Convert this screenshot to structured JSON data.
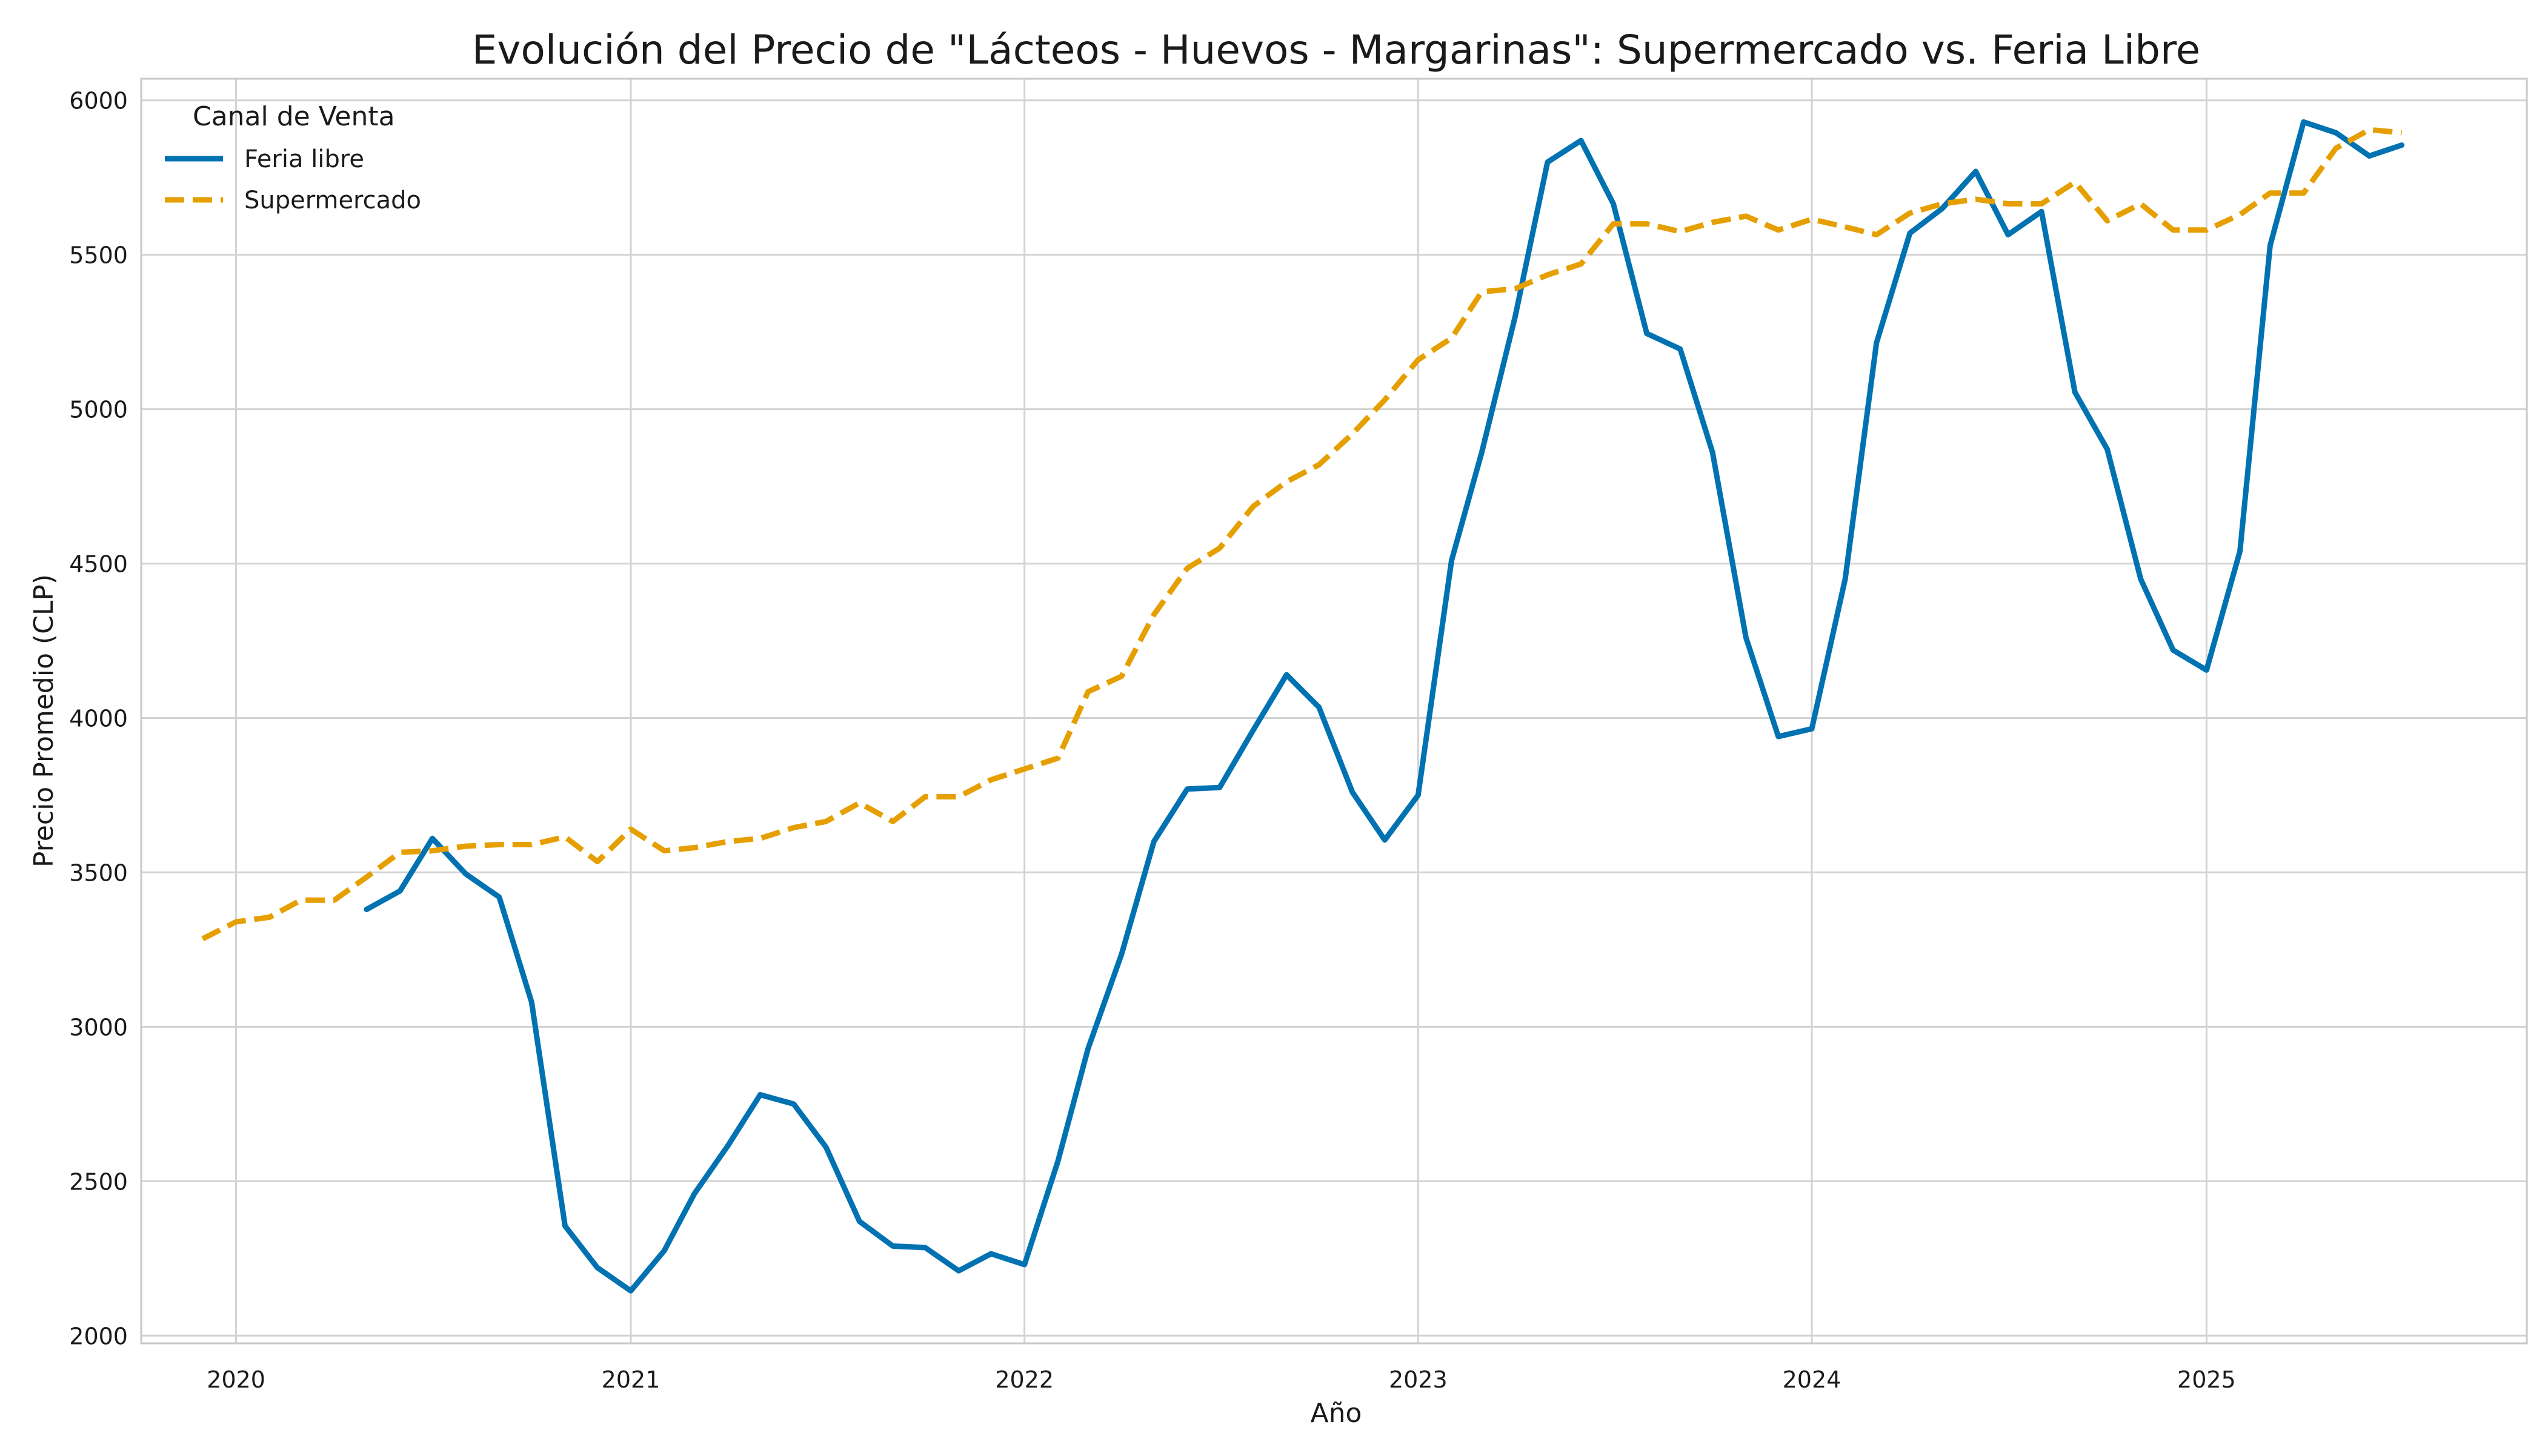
{
  "chart_data": {
    "type": "line",
    "title": "Evolución del Precio de \"Lácteos - Huevos - Margarinas\": Supermercado vs. Feria Libre",
    "xlabel": "Año",
    "ylabel": "Precio Promedio (CLP)",
    "xlim": [
      "2019-10-05",
      "2025-10-25"
    ],
    "ylim": [
      1975,
      6070
    ],
    "x_ticks": [
      "2020",
      "2021",
      "2022",
      "2023",
      "2024",
      "2025"
    ],
    "y_ticks": [
      2000,
      2500,
      3000,
      3500,
      4000,
      4500,
      5000,
      5500,
      6000
    ],
    "grid": true,
    "legend": {
      "title": "Canal de Venta",
      "position": "top-left"
    },
    "series": [
      {
        "name": "Feria libre",
        "color": "#0072b2",
        "style": "solid",
        "points": [
          [
            "2020-05-01",
            3380
          ],
          [
            "2020-06-01",
            3440
          ],
          [
            "2020-07-01",
            3610
          ],
          [
            "2020-08-01",
            3495
          ],
          [
            "2020-09-01",
            3420
          ],
          [
            "2020-10-01",
            3080
          ],
          [
            "2020-11-01",
            2355
          ],
          [
            "2020-12-01",
            2220
          ],
          [
            "2021-01-01",
            2145
          ],
          [
            "2021-02-01",
            2275
          ],
          [
            "2021-03-01",
            2460
          ],
          [
            "2021-04-01",
            2615
          ],
          [
            "2021-05-01",
            2780
          ],
          [
            "2021-06-01",
            2750
          ],
          [
            "2021-07-01",
            2610
          ],
          [
            "2021-08-01",
            2370
          ],
          [
            "2021-09-01",
            2290
          ],
          [
            "2021-10-01",
            2285
          ],
          [
            "2021-11-01",
            2210
          ],
          [
            "2021-12-01",
            2265
          ],
          [
            "2022-01-01",
            2230
          ],
          [
            "2022-02-01",
            2565
          ],
          [
            "2022-03-01",
            2930
          ],
          [
            "2022-04-01",
            3235
          ],
          [
            "2022-05-01",
            3600
          ],
          [
            "2022-06-01",
            3770
          ],
          [
            "2022-07-01",
            3775
          ],
          [
            "2022-08-01",
            3960
          ],
          [
            "2022-09-01",
            4140
          ],
          [
            "2022-10-01",
            4035
          ],
          [
            "2022-11-01",
            3760
          ],
          [
            "2022-12-01",
            3605
          ],
          [
            "2023-01-01",
            3750
          ],
          [
            "2023-02-01",
            4510
          ],
          [
            "2023-03-01",
            4860
          ],
          [
            "2023-04-01",
            5300
          ],
          [
            "2023-05-01",
            5800
          ],
          [
            "2023-06-01",
            5870
          ],
          [
            "2023-07-01",
            5665
          ],
          [
            "2023-08-01",
            5245
          ],
          [
            "2023-09-01",
            5195
          ],
          [
            "2023-10-01",
            4860
          ],
          [
            "2023-11-01",
            4260
          ],
          [
            "2023-12-01",
            3940
          ],
          [
            "2024-01-01",
            3965
          ],
          [
            "2024-02-01",
            4450
          ],
          [
            "2024-03-01",
            5215
          ],
          [
            "2024-04-01",
            5570
          ],
          [
            "2024-05-01",
            5650
          ],
          [
            "2024-06-01",
            5770
          ],
          [
            "2024-07-01",
            5565
          ],
          [
            "2024-08-01",
            5640
          ],
          [
            "2024-09-01",
            5055
          ],
          [
            "2024-10-01",
            4870
          ],
          [
            "2024-11-01",
            4450
          ],
          [
            "2024-12-01",
            4220
          ],
          [
            "2025-01-01",
            4155
          ],
          [
            "2025-02-01",
            4540
          ],
          [
            "2025-03-01",
            5530
          ],
          [
            "2025-04-01",
            5930
          ],
          [
            "2025-05-01",
            5895
          ],
          [
            "2025-06-01",
            5820
          ],
          [
            "2025-07-01",
            5855
          ]
        ]
      },
      {
        "name": "Supermercado",
        "color": "#e69f00",
        "style": "dashed",
        "points": [
          [
            "2019-12-01",
            3285
          ],
          [
            "2020-01-01",
            3340
          ],
          [
            "2020-02-01",
            3355
          ],
          [
            "2020-03-01",
            3410
          ],
          [
            "2020-04-01",
            3410
          ],
          [
            "2020-05-01",
            3485
          ],
          [
            "2020-06-01",
            3565
          ],
          [
            "2020-07-01",
            3570
          ],
          [
            "2020-08-01",
            3585
          ],
          [
            "2020-09-01",
            3590
          ],
          [
            "2020-10-01",
            3590
          ],
          [
            "2020-11-01",
            3615
          ],
          [
            "2020-12-01",
            3535
          ],
          [
            "2021-01-01",
            3640
          ],
          [
            "2021-02-01",
            3570
          ],
          [
            "2021-03-01",
            3580
          ],
          [
            "2021-04-01",
            3600
          ],
          [
            "2021-05-01",
            3610
          ],
          [
            "2021-06-01",
            3645
          ],
          [
            "2021-07-01",
            3665
          ],
          [
            "2021-08-01",
            3725
          ],
          [
            "2021-09-01",
            3665
          ],
          [
            "2021-10-01",
            3745
          ],
          [
            "2021-11-01",
            3745
          ],
          [
            "2021-12-01",
            3800
          ],
          [
            "2022-01-01",
            3835
          ],
          [
            "2022-02-01",
            3870
          ],
          [
            "2022-03-01",
            4085
          ],
          [
            "2022-04-01",
            4135
          ],
          [
            "2022-05-01",
            4335
          ],
          [
            "2022-06-01",
            4485
          ],
          [
            "2022-07-01",
            4550
          ],
          [
            "2022-08-01",
            4685
          ],
          [
            "2022-09-01",
            4765
          ],
          [
            "2022-10-01",
            4820
          ],
          [
            "2022-11-01",
            4920
          ],
          [
            "2022-12-01",
            5030
          ],
          [
            "2023-01-01",
            5160
          ],
          [
            "2023-02-01",
            5230
          ],
          [
            "2023-03-01",
            5380
          ],
          [
            "2023-04-01",
            5390
          ],
          [
            "2023-05-01",
            5435
          ],
          [
            "2023-06-01",
            5470
          ],
          [
            "2023-07-01",
            5600
          ],
          [
            "2023-08-01",
            5600
          ],
          [
            "2023-09-01",
            5575
          ],
          [
            "2023-10-01",
            5605
          ],
          [
            "2023-11-01",
            5625
          ],
          [
            "2023-12-01",
            5580
          ],
          [
            "2024-01-01",
            5615
          ],
          [
            "2024-02-01",
            5590
          ],
          [
            "2024-03-01",
            5565
          ],
          [
            "2024-04-01",
            5635
          ],
          [
            "2024-05-01",
            5665
          ],
          [
            "2024-06-01",
            5680
          ],
          [
            "2024-07-01",
            5665
          ],
          [
            "2024-08-01",
            5665
          ],
          [
            "2024-09-01",
            5735
          ],
          [
            "2024-10-01",
            5610
          ],
          [
            "2024-11-01",
            5665
          ],
          [
            "2024-12-01",
            5580
          ],
          [
            "2025-01-01",
            5580
          ],
          [
            "2025-02-01",
            5630
          ],
          [
            "2025-03-01",
            5700
          ],
          [
            "2025-04-01",
            5700
          ],
          [
            "2025-05-01",
            5845
          ],
          [
            "2025-06-01",
            5905
          ],
          [
            "2025-07-01",
            5895
          ]
        ]
      }
    ]
  }
}
